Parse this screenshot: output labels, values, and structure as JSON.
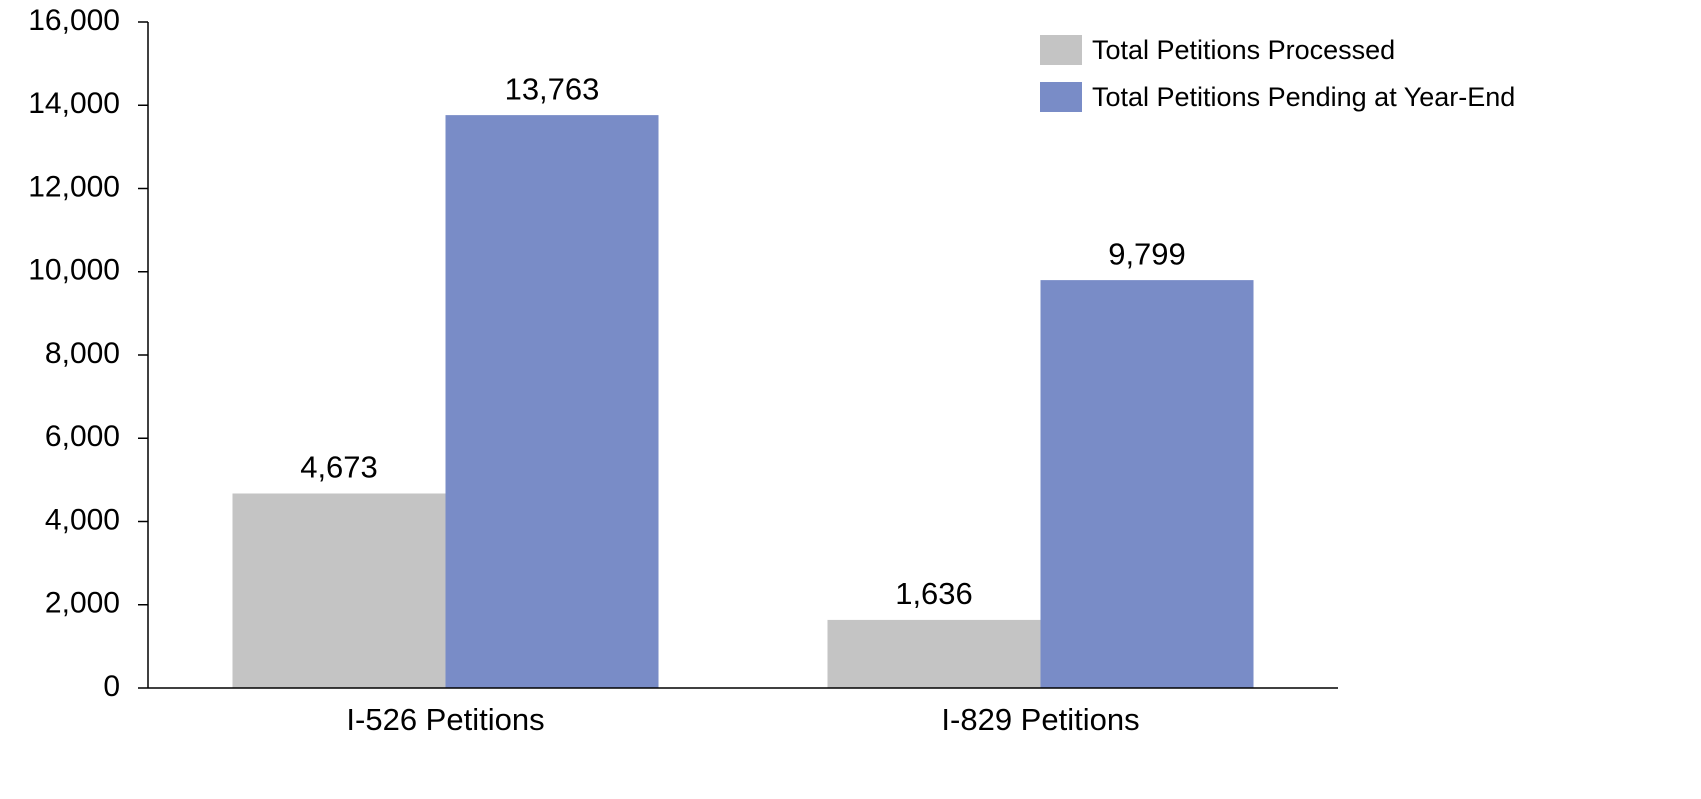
{
  "chart_data": {
    "type": "bar",
    "categories": [
      "I-526 Petitions",
      "I-829 Petitions"
    ],
    "series": [
      {
        "name": "Total Petitions Processed",
        "color": "#c4c4c4",
        "values": [
          4673,
          1636
        ],
        "value_labels": [
          "4,673",
          "1,636"
        ]
      },
      {
        "name": "Total Petitions Pending at Year-End",
        "color": "#798cc7",
        "values": [
          13763,
          9799
        ],
        "value_labels": [
          "13,763",
          "9,799"
        ]
      }
    ],
    "ylim": [
      0,
      16000
    ],
    "yticks": [
      0,
      {
        "value": 2000,
        "label": "2,000"
      },
      {
        "value": 4000,
        "label": "4,000"
      },
      {
        "value": 6000,
        "label": "6,000"
      },
      {
        "value": 8000,
        "label": "8,000"
      },
      {
        "value": 10000,
        "label": "10,000"
      },
      {
        "value": 12000,
        "label": "12,000"
      },
      {
        "value": 14000,
        "label": "14,000"
      },
      {
        "value": 16000,
        "label": "16,000"
      }
    ],
    "grid": false,
    "legend": "upper right"
  }
}
